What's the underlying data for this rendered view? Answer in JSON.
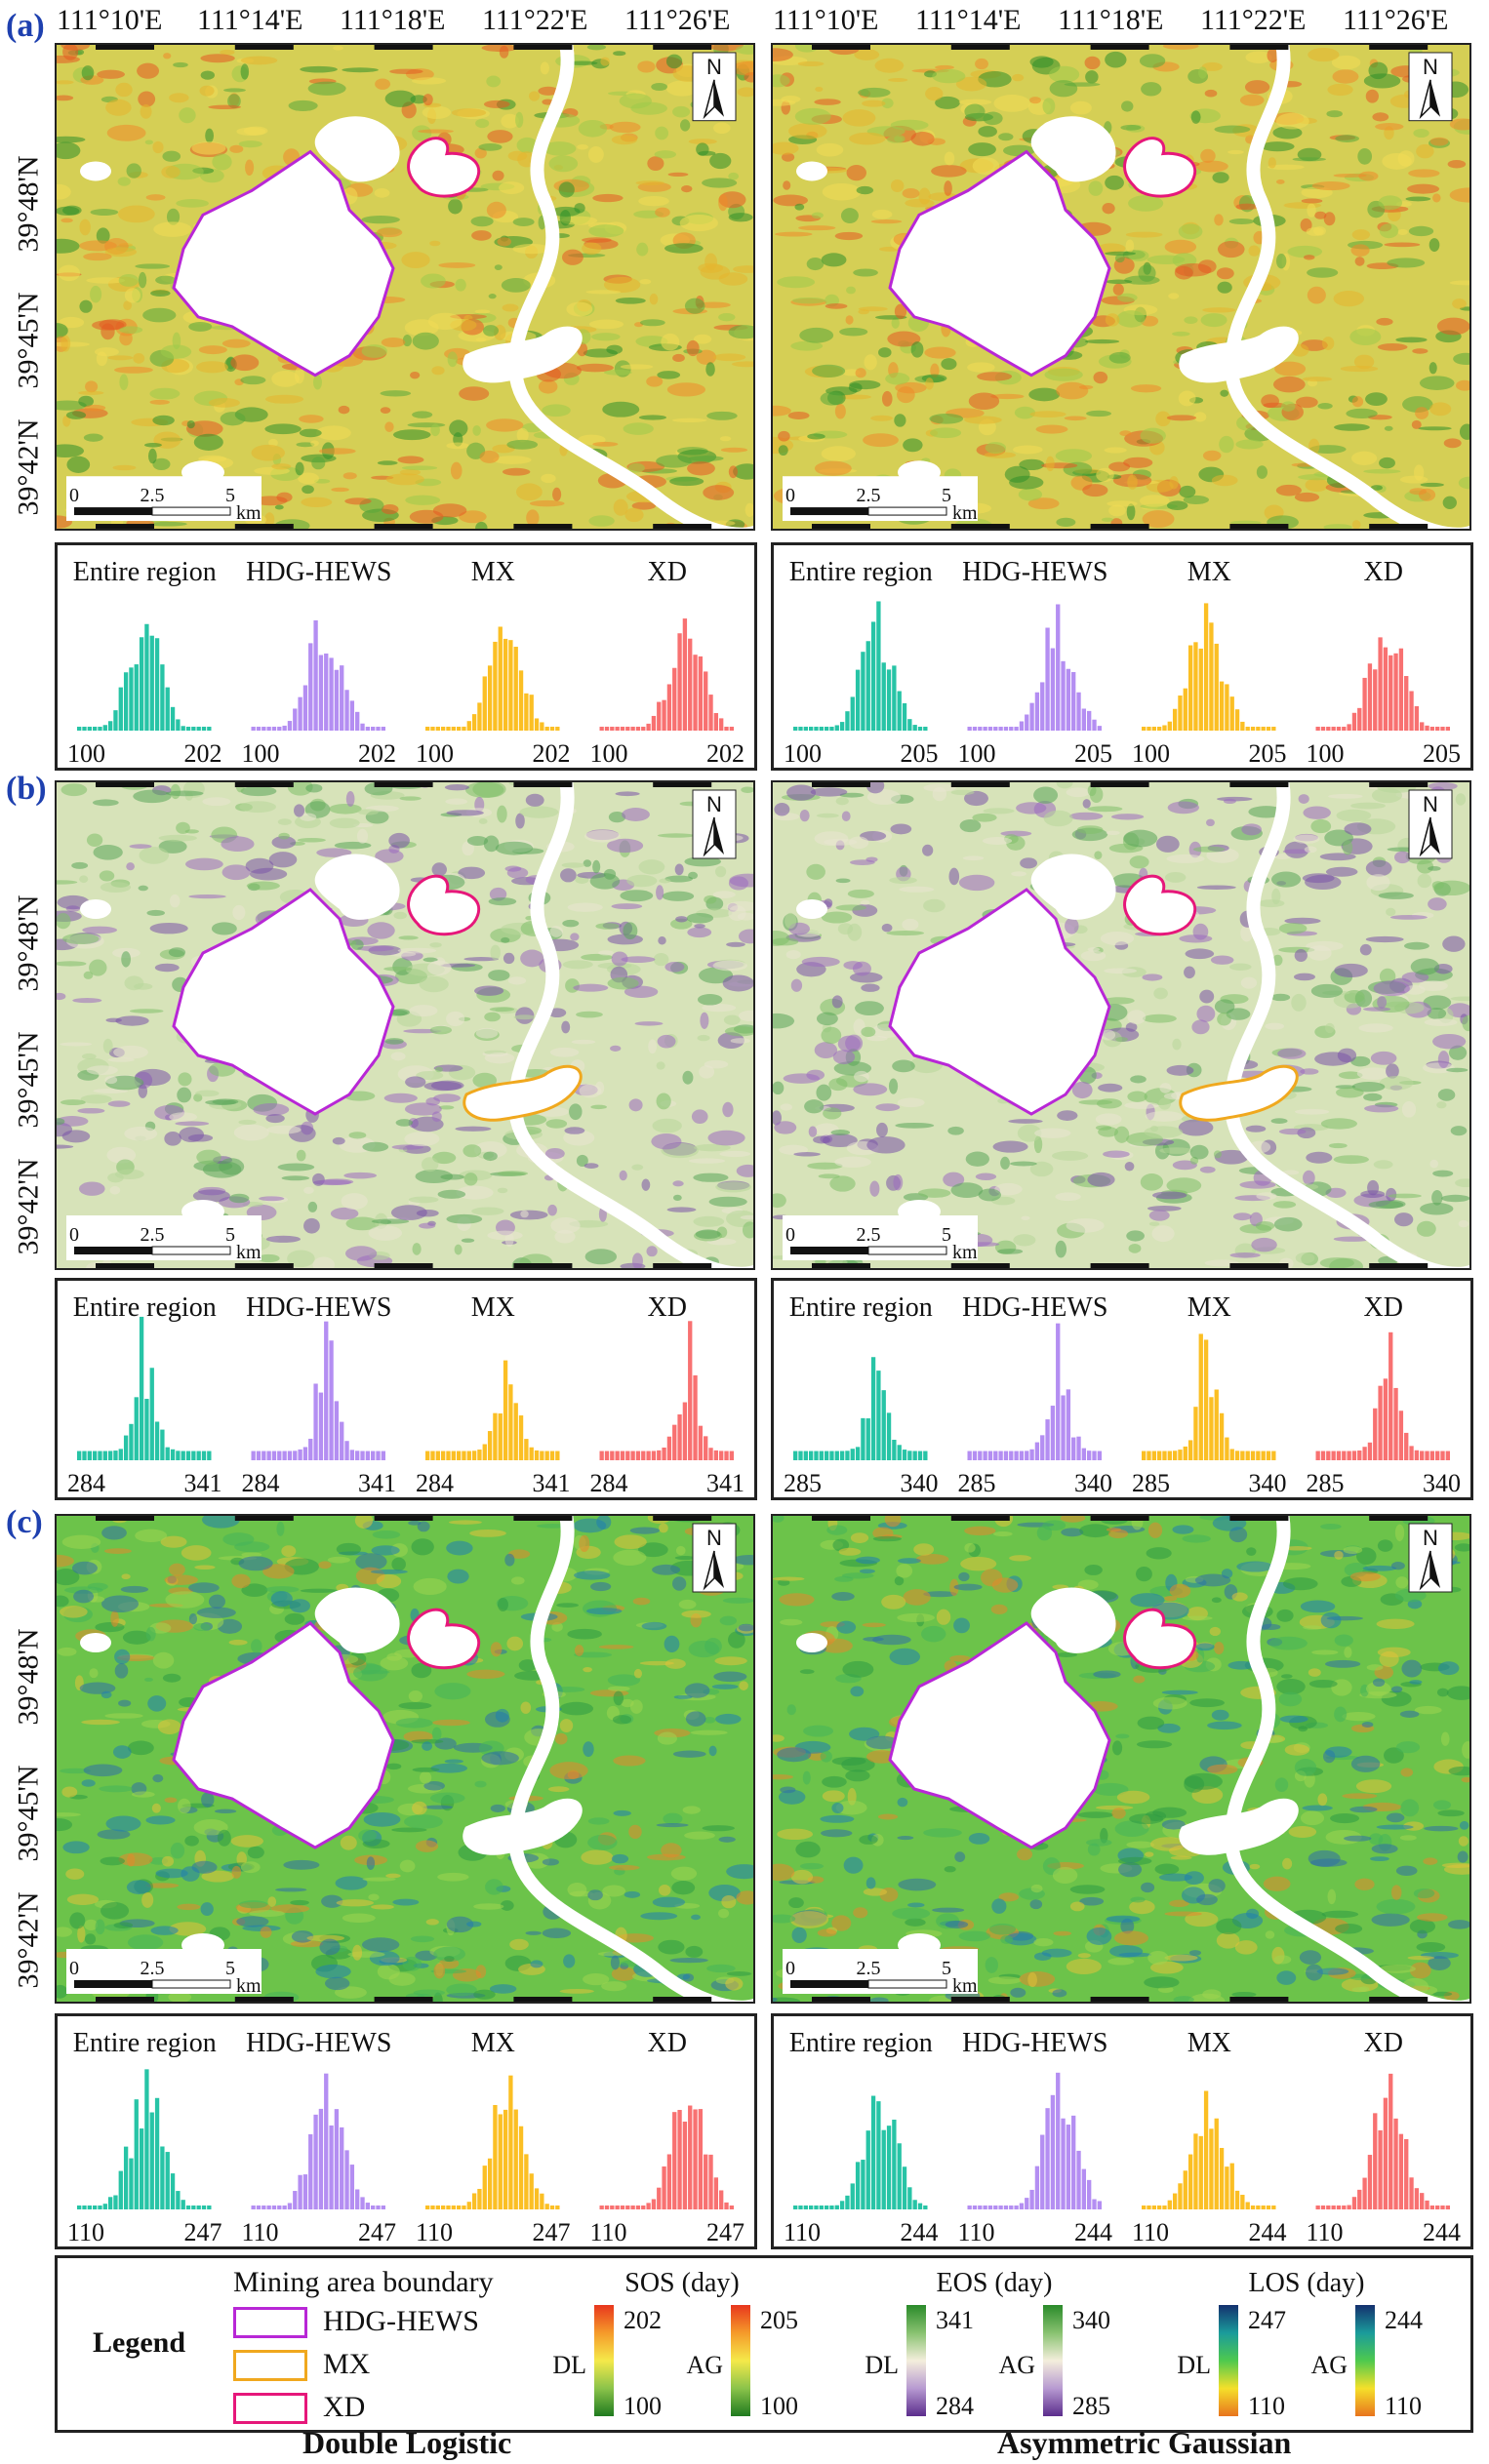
{
  "lon_labels": [
    "111°10'E",
    "111°14'E",
    "111°18'E",
    "111°22'E",
    "111°26'E"
  ],
  "lat_labels": [
    "39°48'N",
    "39°45'N",
    "39°42'N"
  ],
  "north_label": "N",
  "scale_bar": {
    "ticks": [
      "0",
      "2.5",
      "5"
    ],
    "unit": "km"
  },
  "region_names": [
    "Entire region",
    "HDG-HEWS",
    "MX",
    "XD"
  ],
  "region_colors": [
    "#27c4a6",
    "#b48ef2",
    "#fbbf24",
    "#f87171"
  ],
  "panels": [
    {
      "letter": "(a)",
      "palette": "sos",
      "histograms": [
        {
          "min": "100",
          "max": "202"
        },
        {
          "min": "100",
          "max": "205"
        }
      ]
    },
    {
      "letter": "(b)",
      "palette": "eos",
      "histograms": [
        {
          "min": "284",
          "max": "341"
        },
        {
          "min": "285",
          "max": "340"
        }
      ]
    },
    {
      "letter": "(c)",
      "palette": "los",
      "histograms": [
        {
          "min": "110",
          "max": "247"
        },
        {
          "min": "110",
          "max": "244"
        }
      ]
    }
  ],
  "legend": {
    "title": "Legend",
    "boundary_title": "Mining area boundary",
    "boundaries": [
      {
        "name": "HDG-HEWS",
        "color": "#b827d6"
      },
      {
        "name": "MX",
        "color": "#f0a81e"
      },
      {
        "name": "XD",
        "color": "#e6177a"
      }
    ],
    "ramps": [
      {
        "title": "SOS (day)",
        "dl_max": "202",
        "dl_min": "100",
        "ag_max": "205",
        "ag_min": "100",
        "palette": "sos"
      },
      {
        "title": "EOS (day)",
        "dl_max": "341",
        "dl_min": "284",
        "ag_max": "340",
        "ag_min": "285",
        "palette": "eos"
      },
      {
        "title": "LOS (day)",
        "dl_max": "247",
        "dl_min": "110",
        "ag_max": "244",
        "ag_min": "110",
        "palette": "los"
      }
    ],
    "dl_label": "DL",
    "ag_label": "AG"
  },
  "captions": {
    "left": "Double Logistic",
    "right": "Asymmetric Gaussian"
  }
}
